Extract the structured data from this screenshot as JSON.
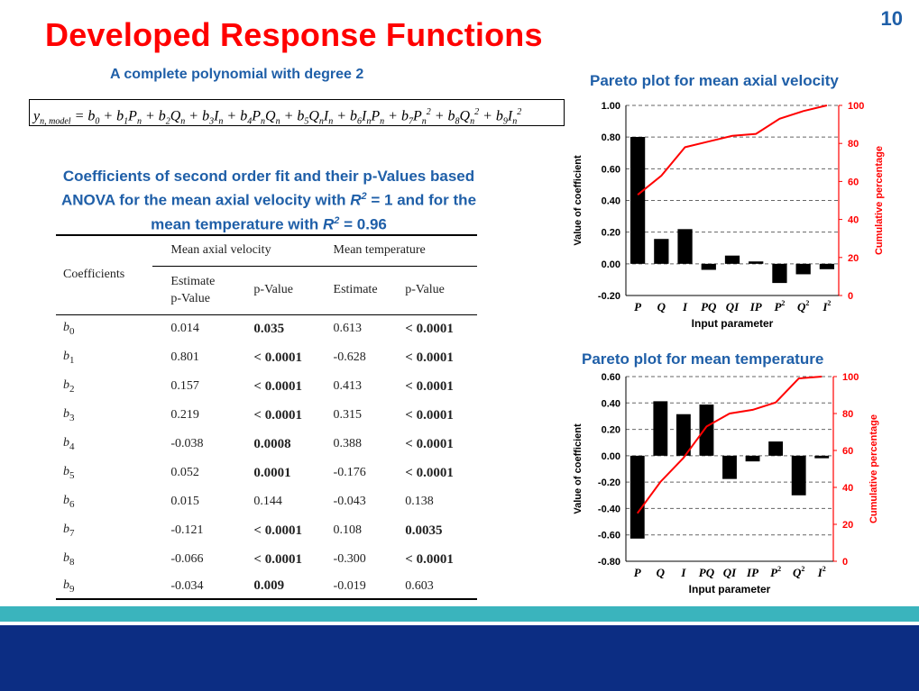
{
  "slide": {
    "title": "Developed Response Functions",
    "number": "10"
  },
  "colors": {
    "title": "#ff0000",
    "heading": "#1f5fa8",
    "bar": "#000000",
    "cumulative_line": "#ff0000",
    "band_teal": "#3ab4bd",
    "band_navy": "#0c2d83"
  },
  "polynomial": {
    "caption": "A complete polynomial with degree 2"
  },
  "coefficients": {
    "caption_line1": "Coefficients of second order fit and their p-Values based",
    "caption_line2": "ANOVA for the mean axial velocity with",
    "caption_r2_a": "R",
    "caption_r2_a_sup": "2",
    "caption_r2_a_val": " = 1 and for the",
    "caption_line3": "mean temperature with",
    "caption_r2_b": "R",
    "caption_r2_b_sup": "2",
    "caption_r2_b_val": " = 0.96",
    "table": {
      "header_coefficients": "Coefficients",
      "group_velocity": "Mean axial velocity",
      "group_temperature": "Mean temperature",
      "sub_estimate_velocity_1": "Estimate",
      "sub_estimate_velocity_2": "p-Value",
      "sub_pvalue_velocity": "p-Value",
      "sub_estimate_temperature": "Estimate",
      "sub_pvalue_temperature": "p-Value",
      "rows": [
        {
          "b": "b",
          "i": "0",
          "ve": "0.014",
          "vp": "0.035",
          "vb": true,
          "te": "0.613",
          "tp": "< 0.0001",
          "tb": true
        },
        {
          "b": "b",
          "i": "1",
          "ve": "0.801",
          "vp": "< 0.0001",
          "vb": true,
          "te": "-0.628",
          "tp": "< 0.0001",
          "tb": true
        },
        {
          "b": "b",
          "i": "2",
          "ve": "0.157",
          "vp": "< 0.0001",
          "vb": true,
          "te": "0.413",
          "tp": "< 0.0001",
          "tb": true
        },
        {
          "b": "b",
          "i": "3",
          "ve": "0.219",
          "vp": "< 0.0001",
          "vb": true,
          "te": "0.315",
          "tp": "< 0.0001",
          "tb": true
        },
        {
          "b": "b",
          "i": "4",
          "ve": "-0.038",
          "vp": "0.0008",
          "vb": true,
          "te": "0.388",
          "tp": "< 0.0001",
          "tb": true
        },
        {
          "b": "b",
          "i": "5",
          "ve": "0.052",
          "vp": "0.0001",
          "vb": true,
          "te": "-0.176",
          "tp": "< 0.0001",
          "tb": true
        },
        {
          "b": "b",
          "i": "6",
          "ve": "0.015",
          "vp": "0.144",
          "vb": false,
          "te": "-0.043",
          "tp": "0.138",
          "tb": false
        },
        {
          "b": "b",
          "i": "7",
          "ve": "-0.121",
          "vp": "< 0.0001",
          "vb": true,
          "te": "0.108",
          "tp": "0.0035",
          "tb": true
        },
        {
          "b": "b",
          "i": "8",
          "ve": "-0.066",
          "vp": "< 0.0001",
          "vb": true,
          "te": "-0.300",
          "tp": "< 0.0001",
          "tb": true
        },
        {
          "b": "b",
          "i": "9",
          "ve": "-0.034",
          "vp": "0.009",
          "vb": true,
          "te": "-0.019",
          "tp": "0.603",
          "tb": false
        }
      ]
    }
  },
  "chart_data": [
    {
      "type": "bar",
      "title": "Pareto plot for mean axial velocity",
      "xlabel": "Input parameter",
      "ylabel": "Value of coefficient",
      "y2label": "Cumulative percentage",
      "categories": [
        "P",
        "Q",
        "I",
        "PQ",
        "QI",
        "IP",
        "P2",
        "Q2",
        "I2"
      ],
      "ylim": [
        -0.2,
        1.0
      ],
      "yticks": [
        "1.00",
        "0.80",
        "0.60",
        "0.40",
        "0.20",
        "0.00",
        "-0.20"
      ],
      "y2lim": [
        0,
        100
      ],
      "y2ticks": [
        "100",
        "80",
        "60",
        "40",
        "20",
        "0"
      ],
      "grid": "dashed horizontal",
      "series": [
        {
          "type": "bar",
          "values": [
            0.801,
            0.157,
            0.219,
            -0.038,
            0.052,
            0.015,
            -0.121,
            -0.066,
            -0.034
          ]
        },
        {
          "type": "line",
          "axis": "secondary",
          "values": [
            53,
            63,
            78,
            81,
            84,
            85,
            93,
            97,
            100
          ]
        }
      ]
    },
    {
      "type": "bar",
      "title": "Pareto plot for mean temperature",
      "xlabel": "Input parameter",
      "ylabel": "Value of coefficient",
      "y2label": "Cumulative percentage",
      "categories": [
        "P",
        "Q",
        "I",
        "PQ",
        "QI",
        "IP",
        "P2",
        "Q2",
        "I2"
      ],
      "ylim": [
        -0.8,
        0.6
      ],
      "yticks": [
        "0.60",
        "0.40",
        "0.20",
        "0.00",
        "-0.20",
        "-0.40",
        "-0.60",
        "-0.80"
      ],
      "y2lim": [
        0,
        100
      ],
      "y2ticks": [
        "100",
        "80",
        "60",
        "40",
        "20",
        "0"
      ],
      "grid": "dashed horizontal",
      "series": [
        {
          "type": "bar",
          "values": [
            -0.628,
            0.413,
            0.315,
            0.388,
            -0.176,
            -0.043,
            0.108,
            -0.3,
            -0.019
          ]
        },
        {
          "type": "line",
          "axis": "secondary",
          "values": [
            26,
            43,
            56,
            73,
            80,
            82,
            86,
            99,
            100
          ]
        }
      ]
    }
  ]
}
